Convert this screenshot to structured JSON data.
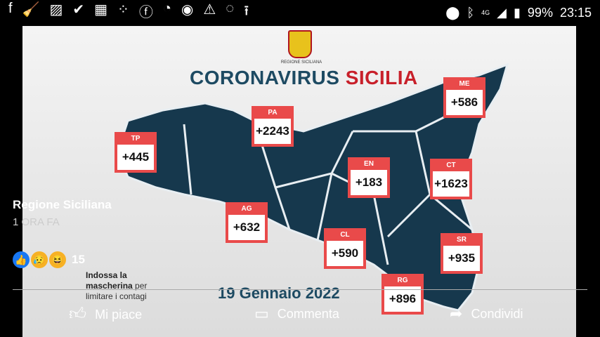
{
  "status_bar": {
    "left_icons": [
      "facebook-icon",
      "broom-icon",
      "image-icon",
      "check-icon",
      "calculator-icon",
      "dots-icon",
      "facebook-icon",
      "messenger-icon",
      "chrome-icon",
      "warning-icon",
      "chat-icon",
      "upload-icon"
    ],
    "network": "4G",
    "battery": "99%",
    "time": "23:15"
  },
  "image": {
    "logo_text": "REGIONE SICILIANA",
    "title_a": "CORONAVIRUS",
    "title_b": "SICILIA",
    "date": "19 Gennaio 2022",
    "mask_bold1": "Indossa la",
    "mask_bold2": "mascherina",
    "mask_rest1": "per",
    "mask_rest2": "limitare i contagi",
    "provinces": [
      {
        "code": "TP",
        "value": "+445"
      },
      {
        "code": "PA",
        "value": "+2243"
      },
      {
        "code": "ME",
        "value": "+586"
      },
      {
        "code": "EN",
        "value": "+183"
      },
      {
        "code": "CT",
        "value": "+1623"
      },
      {
        "code": "AG",
        "value": "+632"
      },
      {
        "code": "CL",
        "value": "+590"
      },
      {
        "code": "SR",
        "value": "+935"
      },
      {
        "code": "RG",
        "value": "+896"
      }
    ],
    "colors": {
      "map": "#16384d",
      "box": "#e94a4a",
      "title": "#1d4a62",
      "accent": "#c8202a"
    }
  },
  "post": {
    "author": "Regione Siciliana",
    "time": "1 ORA FA",
    "reaction_count": "15"
  },
  "actions": {
    "like": "Mi piace",
    "comment": "Commenta",
    "share": "Condividi"
  }
}
